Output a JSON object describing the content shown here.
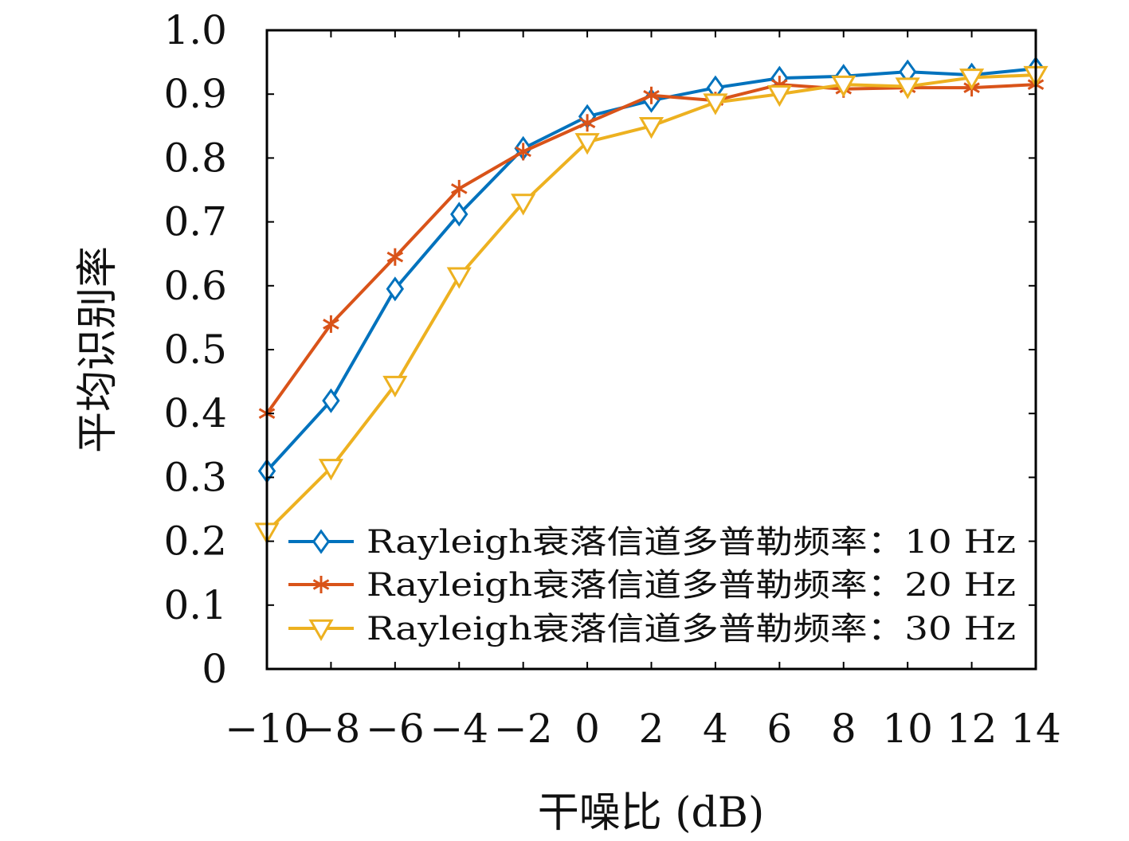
{
  "chart_data": {
    "type": "line",
    "title": "",
    "xlabel": "干噪比 (dB)",
    "ylabel": "平均识别率",
    "x": [
      -10,
      -8,
      -6,
      -4,
      -2,
      0,
      2,
      4,
      6,
      8,
      10,
      12,
      14
    ],
    "x_tick_labels": [
      "−10",
      "−8",
      "−6",
      "−4",
      "−2",
      "0",
      "2",
      "4",
      "6",
      "8",
      "10",
      "12",
      "14"
    ],
    "xlim": [
      -10,
      14
    ],
    "ylim": [
      0,
      1.0
    ],
    "y_ticks": [
      0,
      0.1,
      0.2,
      0.3,
      0.4,
      0.5,
      0.6,
      0.7,
      0.8,
      0.9,
      1.0
    ],
    "y_tick_labels": [
      "0",
      "0.1",
      "0.2",
      "0.3",
      "0.4",
      "0.5",
      "0.6",
      "0.7",
      "0.8",
      "0.9",
      "1.0"
    ],
    "grid": false,
    "legend_position": "bottom-right",
    "series": [
      {
        "name": "Rayleigh衰落信道多普勒频率：10 Hz",
        "color": "#0072BD",
        "marker": "diamond",
        "values": [
          0.31,
          0.42,
          0.595,
          0.712,
          0.815,
          0.865,
          0.89,
          0.91,
          0.925,
          0.928,
          0.935,
          0.93,
          0.94
        ]
      },
      {
        "name": "Rayleigh衰落信道多普勒频率：20 Hz",
        "color": "#D95319",
        "marker": "asterisk",
        "values": [
          0.4,
          0.54,
          0.645,
          0.752,
          0.81,
          0.855,
          0.898,
          0.89,
          0.915,
          0.908,
          0.91,
          0.91,
          0.915
        ]
      },
      {
        "name": "Rayleigh衰落信道多普勒频率：30 Hz",
        "color": "#EDB120",
        "marker": "triangle-down",
        "values": [
          0.215,
          0.315,
          0.445,
          0.615,
          0.73,
          0.825,
          0.85,
          0.887,
          0.9,
          0.915,
          0.912,
          0.926,
          0.93
        ]
      }
    ]
  }
}
